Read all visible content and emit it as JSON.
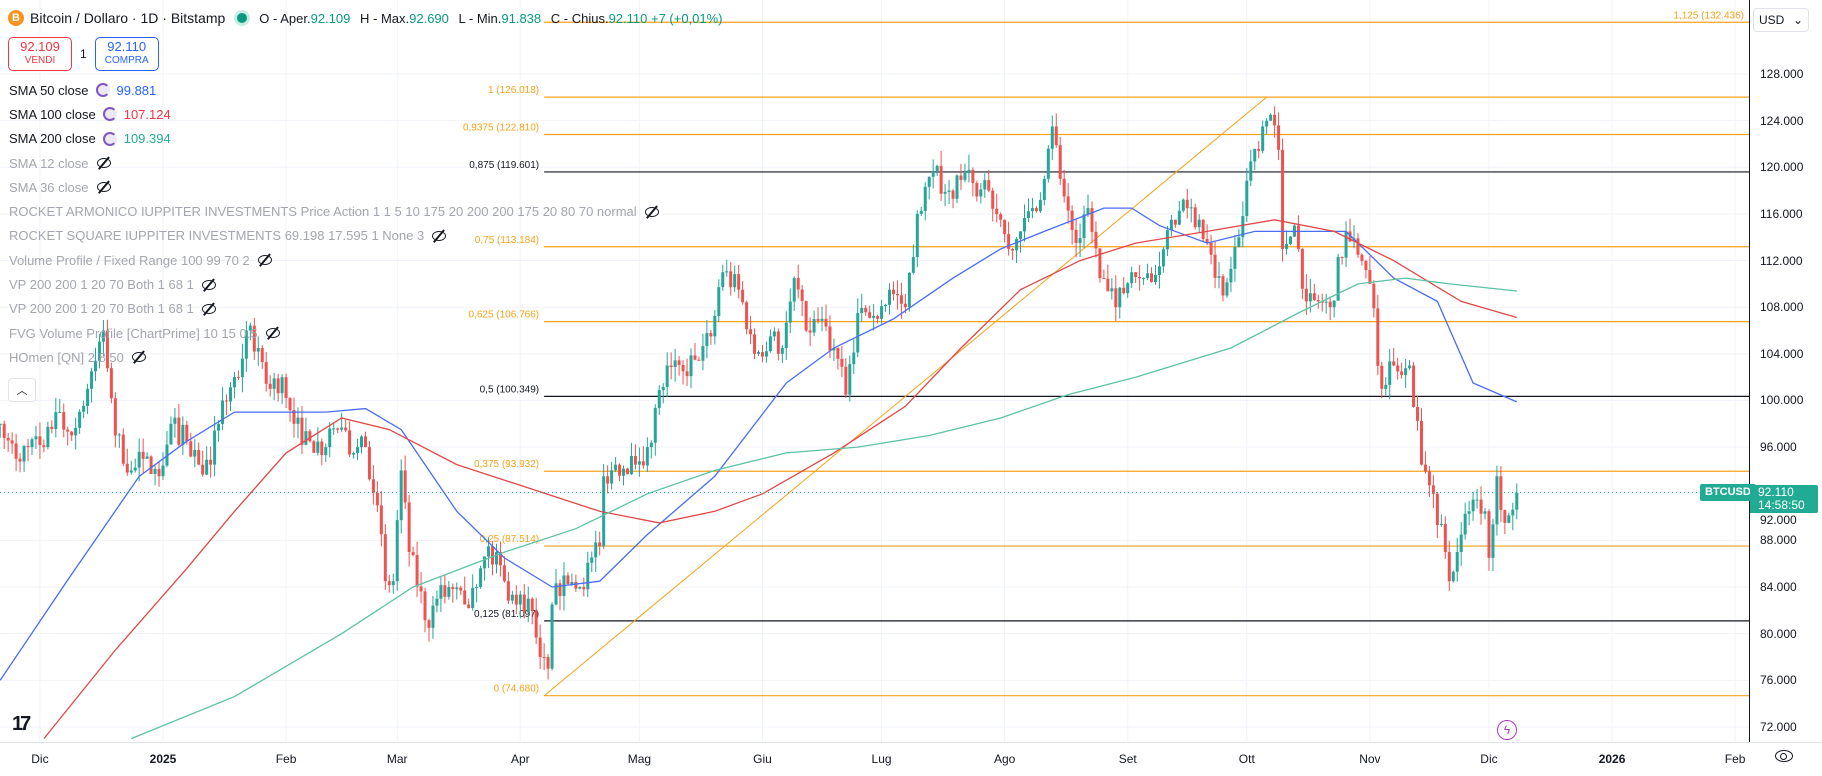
{
  "header": {
    "title": "Bitcoin / Dollaro · 1D · Bitstamp",
    "logo": "B",
    "ohlc": [
      {
        "label": "O - Aper.",
        "value": "92.109"
      },
      {
        "label": "H - Max.",
        "value": "92.690"
      },
      {
        "label": "L - Min.",
        "value": "91.838"
      },
      {
        "label": "C - Chius.",
        "value": "92.110 +7 (+0,01%)"
      }
    ]
  },
  "trade": {
    "sell_price": "92.109",
    "sell_label": "VENDI",
    "qty": "1",
    "buy_price": "92.110",
    "buy_label": "COMPRA"
  },
  "legend": [
    {
      "label": "SMA 50 close",
      "value": "99.881",
      "color": "#2962ff",
      "visible": true
    },
    {
      "label": "SMA 100 close",
      "value": "107.124",
      "color": "#f23645",
      "visible": true
    },
    {
      "label": "SMA 200 close",
      "value": "109.394",
      "color": "#22ab94",
      "visible": true
    },
    {
      "label": "SMA 12 close",
      "visible": false
    },
    {
      "label": "SMA 36 close",
      "visible": false
    },
    {
      "label": "ROCKET ARMONICO IUPPITER INVESTMENTS Price Action 1 1 5 10 175 20 200 200 175 20 80 70 normal",
      "visible": false
    },
    {
      "label": "ROCKET SQUARE IUPPITER INVESTMENTS 69.198 17.595 1 None 3",
      "visible": false
    },
    {
      "label": "Volume Profile / Fixed Range 100 99 70 2",
      "visible": false
    },
    {
      "label": "VP 200 200 1 20 70 Both 1 68 1",
      "visible": false
    },
    {
      "label": "VP 200 200 1 20 70 Both 1 68 1",
      "visible": false
    },
    {
      "label": "FVG Volume Profile [ChartPrime] 10 15 0.5",
      "visible": false
    },
    {
      "label": "HOmen [QN] 2,8 50",
      "visible": false
    }
  ],
  "collapse_icon": "chevron-up-icon",
  "price_axis": {
    "currency": "USD",
    "ticks": [
      "128.000",
      "124.000",
      "120.000",
      "116.000",
      "112.000",
      "108.000",
      "104.000",
      "100.000",
      "96.000",
      "92.000",
      "88.000",
      "84.000",
      "80.000",
      "76.000",
      "72.000"
    ],
    "current_price": "92.110",
    "countdown": "14:58:50",
    "symbol": "BTCUSD"
  },
  "time_axis": [
    {
      "label": "Dic",
      "date": "2024-12-01"
    },
    {
      "label": "2025",
      "date": "2025-01-01",
      "bold": true
    },
    {
      "label": "Feb",
      "date": "2025-02-01"
    },
    {
      "label": "Mar",
      "date": "2025-03-01"
    },
    {
      "label": "Apr",
      "date": "2025-04-01"
    },
    {
      "label": "Mag",
      "date": "2025-05-01"
    },
    {
      "label": "Giu",
      "date": "2025-06-01"
    },
    {
      "label": "Lug",
      "date": "2025-07-01"
    },
    {
      "label": "Ago",
      "date": "2025-08-01"
    },
    {
      "label": "Set",
      "date": "2025-09-01"
    },
    {
      "label": "Ott",
      "date": "2025-10-01"
    },
    {
      "label": "Nov",
      "date": "2025-11-01"
    },
    {
      "label": "Dic",
      "date": "2025-12-01"
    },
    {
      "label": "2026",
      "date": "2026-01-01",
      "bold": true
    },
    {
      "label": "Feb",
      "date": "2026-02-01"
    }
  ],
  "colors": {
    "up": "#26a69a",
    "down": "#ef5350",
    "fib_orange": "#f7a21b",
    "fib_black": "#131722",
    "grid": "#f0f3fa",
    "price_tag": "#22ab94"
  },
  "chart_data": {
    "type": "candlestick",
    "ylim": [
      70.5,
      132.5
    ],
    "unit": "thousand USD",
    "closes": [
      [
        "2024-11-21",
        98
      ],
      [
        "2024-11-25",
        95
      ],
      [
        "2024-11-28",
        96
      ],
      [
        "2024-12-02",
        96
      ],
      [
        "2024-12-05",
        99
      ],
      [
        "2024-12-09",
        97
      ],
      [
        "2024-12-13",
        101
      ],
      [
        "2024-12-17",
        106
      ],
      [
        "2024-12-20",
        97
      ],
      [
        "2024-12-24",
        94
      ],
      [
        "2024-12-27",
        95
      ],
      [
        "2024-12-31",
        93.5
      ],
      [
        "2025-01-03",
        98
      ],
      [
        "2025-01-07",
        96.5
      ],
      [
        "2025-01-10",
        94.5
      ],
      [
        "2025-01-13",
        94.5
      ],
      [
        "2025-01-16",
        100
      ],
      [
        "2025-01-20",
        102
      ],
      [
        "2025-01-22",
        106
      ],
      [
        "2025-01-25",
        104.5
      ],
      [
        "2025-01-28",
        101
      ],
      [
        "2025-01-31",
        102
      ],
      [
        "2025-02-03",
        98
      ],
      [
        "2025-02-07",
        96.5
      ],
      [
        "2025-02-11",
        96
      ],
      [
        "2025-02-14",
        97.5
      ],
      [
        "2025-02-18",
        95.5
      ],
      [
        "2025-02-21",
        96
      ],
      [
        "2025-02-24",
        91
      ],
      [
        "2025-02-26",
        84.5
      ],
      [
        "2025-02-28",
        84.5
      ],
      [
        "2025-03-02",
        94
      ],
      [
        "2025-03-04",
        87
      ],
      [
        "2025-03-09",
        80.5
      ],
      [
        "2025-03-11",
        83
      ],
      [
        "2025-03-14",
        84
      ],
      [
        "2025-03-18",
        82.5
      ],
      [
        "2025-03-21",
        84
      ],
      [
        "2025-03-24",
        87.5
      ],
      [
        "2025-03-28",
        84.5
      ],
      [
        "2025-03-31",
        82.5
      ],
      [
        "2025-04-03",
        83
      ],
      [
        "2025-04-06",
        78
      ],
      [
        "2025-04-08",
        77
      ],
      [
        "2025-04-09",
        82.5
      ],
      [
        "2025-04-12",
        85
      ],
      [
        "2025-04-16",
        84
      ],
      [
        "2025-04-21",
        87.5
      ],
      [
        "2025-04-22",
        93.5
      ],
      [
        "2025-04-25",
        94.5
      ],
      [
        "2025-04-30",
        94.5
      ],
      [
        "2025-05-03",
        96
      ],
      [
        "2025-05-08",
        103
      ],
      [
        "2025-05-12",
        102.5
      ],
      [
        "2025-05-15",
        103.5
      ],
      [
        "2025-05-19",
        105.5
      ],
      [
        "2025-05-22",
        111
      ],
      [
        "2025-05-26",
        109.5
      ],
      [
        "2025-05-30",
        104
      ],
      [
        "2025-06-03",
        105.5
      ],
      [
        "2025-06-06",
        104.5
      ],
      [
        "2025-06-09",
        110.5
      ],
      [
        "2025-06-12",
        106
      ],
      [
        "2025-06-16",
        107
      ],
      [
        "2025-06-19",
        104.5
      ],
      [
        "2025-06-22",
        100.5
      ],
      [
        "2025-06-25",
        107.5
      ],
      [
        "2025-06-30",
        107
      ],
      [
        "2025-07-03",
        109.5
      ],
      [
        "2025-07-07",
        108
      ],
      [
        "2025-07-10",
        116
      ],
      [
        "2025-07-14",
        119.5
      ],
      [
        "2025-07-18",
        118
      ],
      [
        "2025-07-22",
        119.5
      ],
      [
        "2025-07-25",
        117.5
      ],
      [
        "2025-07-28",
        118
      ],
      [
        "2025-07-31",
        115.5
      ],
      [
        "2025-08-02",
        113
      ],
      [
        "2025-08-05",
        114.5
      ],
      [
        "2025-08-08",
        116.5
      ],
      [
        "2025-08-11",
        119
      ],
      [
        "2025-08-13",
        123.5
      ],
      [
        "2025-08-16",
        117.5
      ],
      [
        "2025-08-19",
        113.5
      ],
      [
        "2025-08-22",
        116.5
      ],
      [
        "2025-08-25",
        110.5
      ],
      [
        "2025-08-29",
        108
      ],
      [
        "2025-09-02",
        111
      ],
      [
        "2025-09-05",
        110.5
      ],
      [
        "2025-09-09",
        111.5
      ],
      [
        "2025-09-12",
        115.5
      ],
      [
        "2025-09-16",
        116.5
      ],
      [
        "2025-09-19",
        115.5
      ],
      [
        "2025-09-22",
        112.5
      ],
      [
        "2025-09-25",
        109
      ],
      [
        "2025-09-29",
        114
      ],
      [
        "2025-10-02",
        120.5
      ],
      [
        "2025-10-05",
        123.5
      ],
      [
        "2025-10-07",
        124.5
      ],
      [
        "2025-10-09",
        121.5
      ],
      [
        "2025-10-10",
        113
      ],
      [
        "2025-10-13",
        115
      ],
      [
        "2025-10-16",
        108.5
      ],
      [
        "2025-10-19",
        108.5
      ],
      [
        "2025-10-22",
        108
      ],
      [
        "2025-10-26",
        114.5
      ],
      [
        "2025-10-29",
        112.5
      ],
      [
        "2025-11-01",
        110
      ],
      [
        "2025-11-04",
        101
      ],
      [
        "2025-11-07",
        103
      ],
      [
        "2025-11-11",
        103
      ],
      [
        "2025-11-14",
        94.5
      ],
      [
        "2025-11-17",
        92
      ],
      [
        "2025-11-20",
        87
      ],
      [
        "2025-11-21",
        84.5
      ],
      [
        "2025-11-24",
        88.5
      ],
      [
        "2025-11-26",
        90.5
      ],
      [
        "2025-11-28",
        91.5
      ],
      [
        "2025-11-30",
        90.5
      ],
      [
        "2025-12-01",
        86.5
      ],
      [
        "2025-12-03",
        93.5
      ],
      [
        "2025-12-05",
        89.5
      ],
      [
        "2025-12-08",
        92.11
      ]
    ],
    "moving_averages": [
      {
        "name": "SMA 50 close",
        "color": "#4a6cf7",
        "points": [
          [
            "2024-11-21",
            76
          ],
          [
            "2024-12-08",
            84.6
          ],
          [
            "2024-12-26",
            93.5
          ],
          [
            "2025-01-07",
            96.5
          ],
          [
            "2025-01-19",
            99
          ],
          [
            "2025-02-11",
            99
          ],
          [
            "2025-02-21",
            99.3
          ],
          [
            "2025-03-02",
            97.5
          ],
          [
            "2025-03-16",
            90.5
          ],
          [
            "2025-03-28",
            86.5
          ],
          [
            "2025-04-09",
            84
          ],
          [
            "2025-04-21",
            84.5
          ],
          [
            "2025-05-03",
            88.5
          ],
          [
            "2025-05-20",
            93.5
          ],
          [
            "2025-06-07",
            101.5
          ],
          [
            "2025-06-19",
            104.5
          ],
          [
            "2025-07-04",
            107
          ],
          [
            "2025-07-19",
            110.5
          ],
          [
            "2025-07-31",
            113
          ],
          [
            "2025-08-11",
            114.5
          ],
          [
            "2025-08-26",
            116.5
          ],
          [
            "2025-09-02",
            116.5
          ],
          [
            "2025-09-09",
            115
          ],
          [
            "2025-09-21",
            113.5
          ],
          [
            "2025-10-03",
            114.5
          ],
          [
            "2025-10-14",
            114.5
          ],
          [
            "2025-10-26",
            114.5
          ],
          [
            "2025-11-07",
            110.5
          ],
          [
            "2025-11-18",
            108.5
          ],
          [
            "2025-11-27",
            101.5
          ],
          [
            "2025-12-08",
            99.88
          ]
        ]
      },
      {
        "name": "SMA 100 close",
        "color": "#e04848",
        "points": [
          [
            "2024-12-02",
            71
          ],
          [
            "2024-12-20",
            78.6
          ],
          [
            "2025-01-07",
            85.6
          ],
          [
            "2025-01-19",
            90.5
          ],
          [
            "2025-02-01",
            95.5
          ],
          [
            "2025-02-15",
            98.5
          ],
          [
            "2025-02-27",
            97.5
          ],
          [
            "2025-03-16",
            94.5
          ],
          [
            "2025-04-03",
            92.5
          ],
          [
            "2025-04-21",
            90.5
          ],
          [
            "2025-05-06",
            89.5
          ],
          [
            "2025-05-20",
            90.5
          ],
          [
            "2025-06-01",
            92
          ],
          [
            "2025-06-19",
            95.5
          ],
          [
            "2025-07-07",
            99.5
          ],
          [
            "2025-07-21",
            104.5
          ],
          [
            "2025-08-05",
            109.5
          ],
          [
            "2025-08-20",
            112
          ],
          [
            "2025-09-03",
            113.5
          ],
          [
            "2025-09-21",
            114.5
          ],
          [
            "2025-10-08",
            115.5
          ],
          [
            "2025-10-23",
            114.5
          ],
          [
            "2025-11-07",
            112
          ],
          [
            "2025-11-24",
            108.5
          ],
          [
            "2025-12-08",
            107.12
          ]
        ]
      },
      {
        "name": "SMA 200 close",
        "color": "#5cc2a6",
        "points": [
          [
            "2024-12-24",
            71
          ],
          [
            "2025-01-19",
            74.6
          ],
          [
            "2025-02-15",
            80
          ],
          [
            "2025-03-05",
            84
          ],
          [
            "2025-03-28",
            87
          ],
          [
            "2025-04-15",
            89
          ],
          [
            "2025-05-03",
            92
          ],
          [
            "2025-05-20",
            94
          ],
          [
            "2025-06-07",
            95.5
          ],
          [
            "2025-06-25",
            96
          ],
          [
            "2025-07-13",
            97
          ],
          [
            "2025-07-31",
            98.5
          ],
          [
            "2025-08-17",
            100.5
          ],
          [
            "2025-09-03",
            102
          ],
          [
            "2025-09-27",
            104.5
          ],
          [
            "2025-10-14",
            107.5
          ],
          [
            "2025-10-29",
            110
          ],
          [
            "2025-11-10",
            110.5
          ],
          [
            "2025-11-21",
            110
          ],
          [
            "2025-12-08",
            109.39
          ]
        ]
      }
    ],
    "fibonacci": {
      "start": [
        "2025-04-07",
        74.68
      ],
      "end": [
        "2025-10-06",
        126.018
      ],
      "levels": [
        {
          "label": "1,125 (132.436)",
          "price": 132.436,
          "color": "orange"
        },
        {
          "label": "1 (126.018)",
          "price": 126.018,
          "color": "orange"
        },
        {
          "label": "0,9375 (122.810)",
          "price": 122.81,
          "color": "orange"
        },
        {
          "label": "0,875 (119.601)",
          "price": 119.601,
          "color": "black"
        },
        {
          "label": "0,75 (113.184)",
          "price": 113.184,
          "color": "orange"
        },
        {
          "label": "0,625 (106.766)",
          "price": 106.766,
          "color": "orange"
        },
        {
          "label": "0,5 (100.349)",
          "price": 100.349,
          "color": "black"
        },
        {
          "label": "0,375 (93.932)",
          "price": 93.932,
          "color": "orange"
        },
        {
          "label": "0,25 (87.514)",
          "price": 87.514,
          "color": "orange"
        },
        {
          "label": "0,125 (81.097)",
          "price": 81.097,
          "color": "black"
        },
        {
          "label": "0 (74.680)",
          "price": 74.68,
          "color": "orange"
        }
      ]
    },
    "last_price": 92.11
  }
}
